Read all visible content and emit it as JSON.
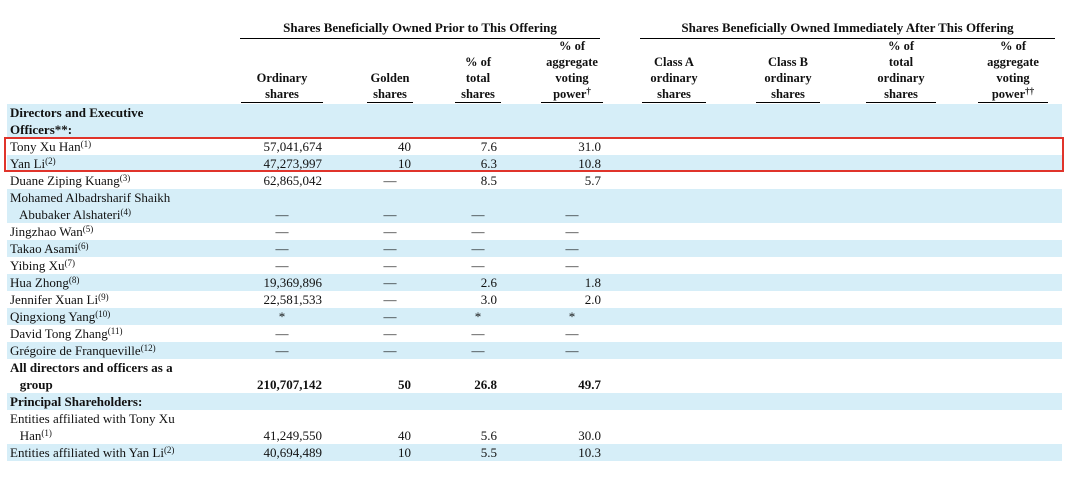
{
  "header": {
    "prior_group": "Shares Beneficially Owned Prior to This Offering",
    "after_group": "Shares Beneficially Owned Immediately After This Offering",
    "prior_cols": [
      {
        "lines": [
          "Ordinary",
          "shares"
        ],
        "sup": ""
      },
      {
        "lines": [
          "Golden",
          "shares"
        ],
        "sup": ""
      },
      {
        "lines": [
          "% of",
          "total",
          "shares"
        ],
        "sup": ""
      },
      {
        "lines": [
          "% of",
          "aggregate",
          "voting",
          "power"
        ],
        "sup": "†"
      }
    ],
    "after_cols": [
      {
        "lines": [
          "Class A",
          "ordinary",
          "shares"
        ],
        "sup": ""
      },
      {
        "lines": [
          "Class B",
          "ordinary",
          "shares"
        ],
        "sup": ""
      },
      {
        "lines": [
          "% of",
          "total",
          "ordinary",
          "shares"
        ],
        "sup": ""
      },
      {
        "lines": [
          "% of",
          "aggregate",
          "voting",
          "power"
        ],
        "sup": "††"
      }
    ]
  },
  "rows": [
    {
      "lines": [
        "Directors and Executive",
        "Officers**:"
      ],
      "note": "",
      "bold": true,
      "shade": true,
      "values": [
        "",
        "",
        "",
        ""
      ]
    },
    {
      "lines": [
        "Tony Xu Han"
      ],
      "note": "(1)",
      "bold": false,
      "shade": false,
      "values": [
        "57,041,674",
        "40",
        "7.6",
        "31.0"
      ]
    },
    {
      "lines": [
        "Yan Li"
      ],
      "note": "(2)",
      "bold": false,
      "shade": true,
      "values": [
        "47,273,997",
        "10",
        "6.3",
        "10.8"
      ]
    },
    {
      "lines": [
        "Duane Ziping Kuang"
      ],
      "note": "(3)",
      "bold": false,
      "shade": false,
      "values": [
        "62,865,042",
        "—",
        "8.5",
        "5.7"
      ]
    },
    {
      "lines": [
        "Mohamed Albadrsharif Shaikh",
        "   Abubaker Alshateri"
      ],
      "note": "(4)",
      "bold": false,
      "shade": true,
      "values": [
        "—",
        "—",
        "—",
        "—"
      ]
    },
    {
      "lines": [
        "Jingzhao Wan"
      ],
      "note": "(5)",
      "bold": false,
      "shade": false,
      "values": [
        "—",
        "—",
        "—",
        "—"
      ]
    },
    {
      "lines": [
        "Takao Asami"
      ],
      "note": "(6)",
      "bold": false,
      "shade": true,
      "values": [
        "—",
        "—",
        "—",
        "—"
      ]
    },
    {
      "lines": [
        "Yibing Xu"
      ],
      "note": "(7)",
      "bold": false,
      "shade": false,
      "values": [
        "—",
        "—",
        "—",
        "—"
      ]
    },
    {
      "lines": [
        "Hua Zhong"
      ],
      "note": "(8)",
      "bold": false,
      "shade": true,
      "values": [
        "19,369,896",
        "—",
        "2.6",
        "1.8"
      ]
    },
    {
      "lines": [
        "Jennifer Xuan Li"
      ],
      "note": "(9)",
      "bold": false,
      "shade": false,
      "values": [
        "22,581,533",
        "—",
        "3.0",
        "2.0"
      ]
    },
    {
      "lines": [
        "Qingxiong Yang"
      ],
      "note": "(10)",
      "bold": false,
      "shade": true,
      "values": [
        "*",
        "—",
        "*",
        "*"
      ]
    },
    {
      "lines": [
        "David Tong Zhang"
      ],
      "note": "(11)",
      "bold": false,
      "shade": false,
      "values": [
        "—",
        "—",
        "—",
        "—"
      ]
    },
    {
      "lines": [
        "Grégoire de Franqueville"
      ],
      "note": "(12)",
      "bold": false,
      "shade": true,
      "values": [
        "—",
        "—",
        "—",
        "—"
      ]
    },
    {
      "lines": [
        "All directors and officers as a",
        "   group"
      ],
      "note": "",
      "bold": true,
      "shade": false,
      "values": [
        "210,707,142",
        "50",
        "26.8",
        "49.7"
      ]
    },
    {
      "lines": [
        "Principal Shareholders:"
      ],
      "note": "",
      "bold": true,
      "shade": true,
      "values": [
        "",
        "",
        "",
        ""
      ]
    },
    {
      "lines": [
        "Entities affiliated with Tony Xu",
        "   Han"
      ],
      "note": "(1)",
      "bold": false,
      "shade": false,
      "values": [
        "41,249,550",
        "40",
        "5.6",
        "30.0"
      ]
    },
    {
      "lines": [
        "Entities affiliated with Yan Li"
      ],
      "note": "(2)",
      "bold": false,
      "shade": true,
      "values": [
        "40,694,489",
        "10",
        "5.5",
        "10.3"
      ]
    }
  ],
  "highlight_color": "#e0342b",
  "shade_color": "#d6eef8"
}
